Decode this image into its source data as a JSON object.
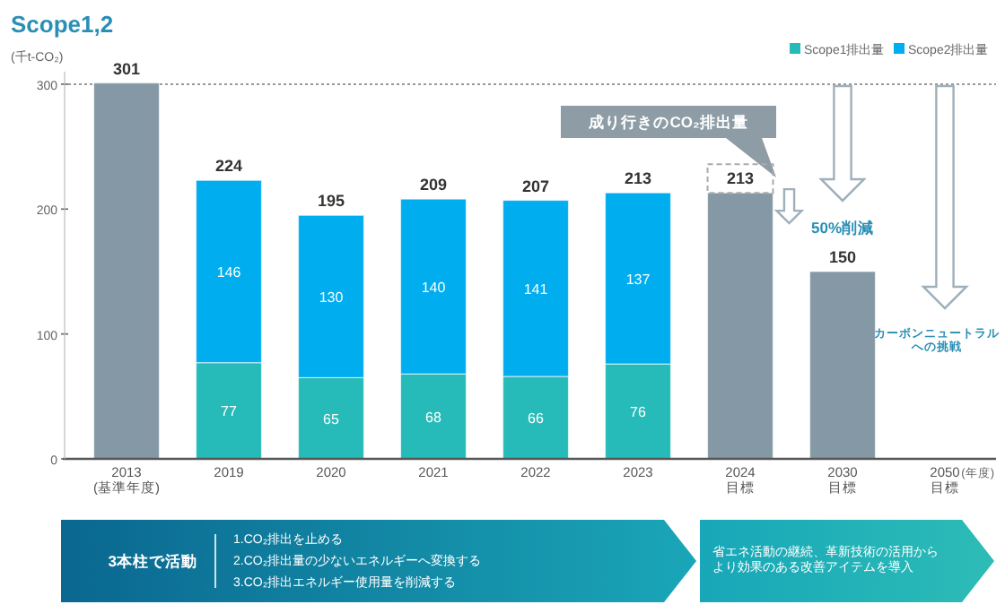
{
  "chart_data": {
    "type": "bar",
    "title": "Scope1,2",
    "ylabel": "(千t-CO₂)",
    "stacked": true,
    "categories": [
      "2013\n(基準年度)",
      "2019",
      "2020",
      "2021",
      "2022",
      "2023",
      "2024\n目標",
      "2030\n目標",
      "2050\n目標"
    ],
    "series": [
      {
        "name": "Scope1排出量",
        "color": "#26bbb8",
        "values": [
          null,
          77,
          65,
          68,
          66,
          76,
          null,
          null,
          null
        ],
        "value_labels": [
          null,
          "77",
          "65",
          "68",
          "66",
          "76",
          null,
          null,
          null
        ]
      },
      {
        "name": "Scope2排出量",
        "color": "#00adef",
        "values": [
          null,
          146,
          130,
          140,
          141,
          137,
          null,
          null,
          null
        ],
        "value_labels": [
          null,
          "146",
          "130",
          "140",
          "141",
          "137",
          null,
          null,
          null
        ]
      },
      {
        "color": "#8499a5",
        "values": [
          301,
          null,
          null,
          null,
          null,
          null,
          213,
          150,
          null
        ],
        "value_labels": [
          "301",
          null,
          null,
          null,
          null,
          null,
          "213",
          "150",
          null
        ]
      }
    ],
    "totals": [
      null,
      "224",
      "195",
      "209",
      "207",
      "213",
      null,
      null,
      null
    ],
    "ylim": [
      0,
      310
    ],
    "yticks": [
      0,
      100,
      200,
      300
    ],
    "grid": false,
    "legend": "top right",
    "ref_lines": [
      {
        "axis": "y",
        "value": 300,
        "color": "#999999",
        "line_style": "dotted"
      }
    ],
    "annotations": [
      "成り行きのCO₂排出量",
      "50%削減",
      "カーボンニュートラルへの挑戦",
      "(年度)",
      "3本柱で活動",
      "1.CO₂排出を止める",
      "2.CO₂排出量の少ないエネルギーへ変換する",
      "3.CO₂排出エネルギー使用量を削減する",
      "省エネ活動の継続、革新技術の活用からより効果のある改善アイテムを導入"
    ]
  }
}
